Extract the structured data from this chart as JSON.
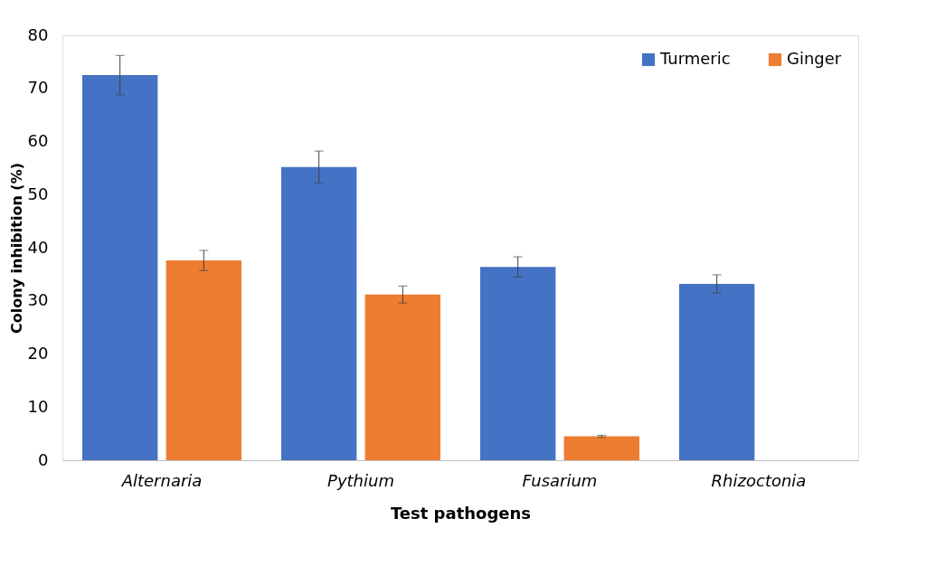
{
  "chart_data": {
    "type": "bar",
    "xlabel": "Test pathogens",
    "ylabel": "Colony inhibition (%)",
    "categories": [
      "Alternaria",
      "Pythium",
      "Fusarium",
      "Rhizoctonia"
    ],
    "series": [
      {
        "name": "Turmeric",
        "color": "#4472c4",
        "values": [
          72.5,
          55.2,
          36.4,
          33.2
        ],
        "errors": [
          3.7,
          3.0,
          1.9,
          1.7
        ]
      },
      {
        "name": "Ginger",
        "color": "#ed7d31",
        "values": [
          37.6,
          31.2,
          4.5,
          null
        ],
        "errors": [
          1.9,
          1.6,
          0.2,
          null
        ]
      }
    ],
    "ylim": [
      0,
      80
    ],
    "yticks": [
      0,
      10,
      20,
      30,
      40,
      50,
      60,
      70,
      80
    ],
    "grid": false,
    "legend": "top right"
  }
}
